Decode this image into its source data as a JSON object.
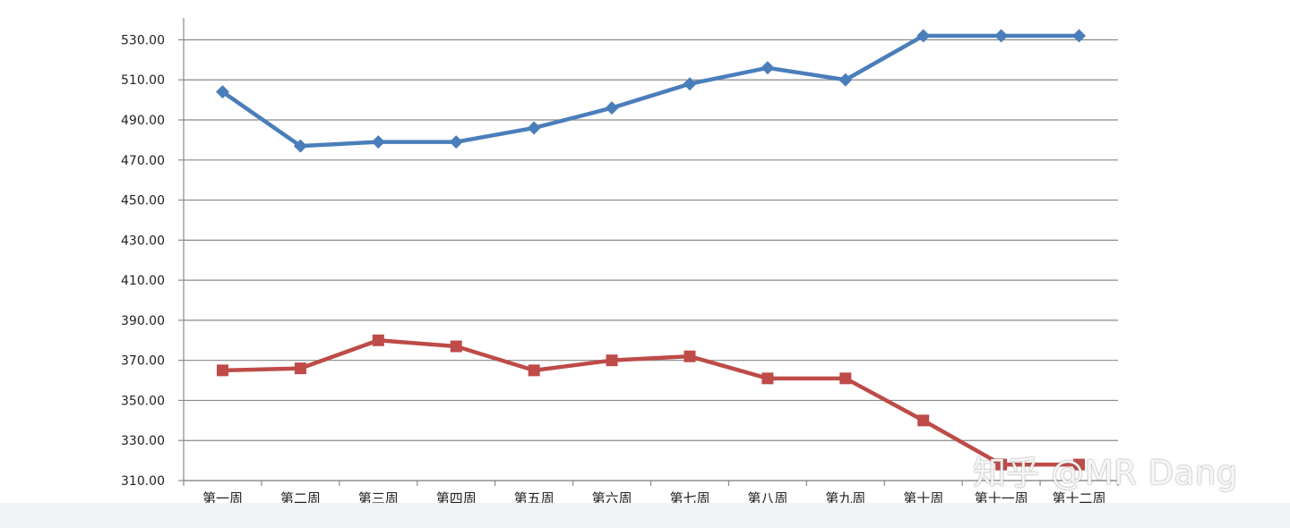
{
  "chart_data": {
    "type": "line",
    "categories": [
      "第一周",
      "第二周",
      "第三周",
      "第四周",
      "第五周",
      "第六周",
      "第七周",
      "第八周",
      "第九周",
      "第十周",
      "第十一周",
      "第十二周"
    ],
    "ylim": [
      310,
      540
    ],
    "yticks": [
      "310.00",
      "330.00",
      "350.00",
      "370.00",
      "390.00",
      "410.00",
      "430.00",
      "450.00",
      "470.00",
      "490.00",
      "510.00",
      "530.00"
    ],
    "grid": true,
    "series": [
      {
        "color": "#4a7ebb",
        "marker": "diamond",
        "values": [
          504,
          477,
          479,
          479,
          486,
          496,
          508,
          516,
          510,
          532,
          532,
          532
        ]
      },
      {
        "color": "#be4b48",
        "marker": "square",
        "values": [
          365,
          366,
          380,
          377,
          365,
          370,
          372,
          361,
          361,
          340,
          318,
          318
        ]
      }
    ]
  },
  "watermark": "知乎 @MR Dang"
}
